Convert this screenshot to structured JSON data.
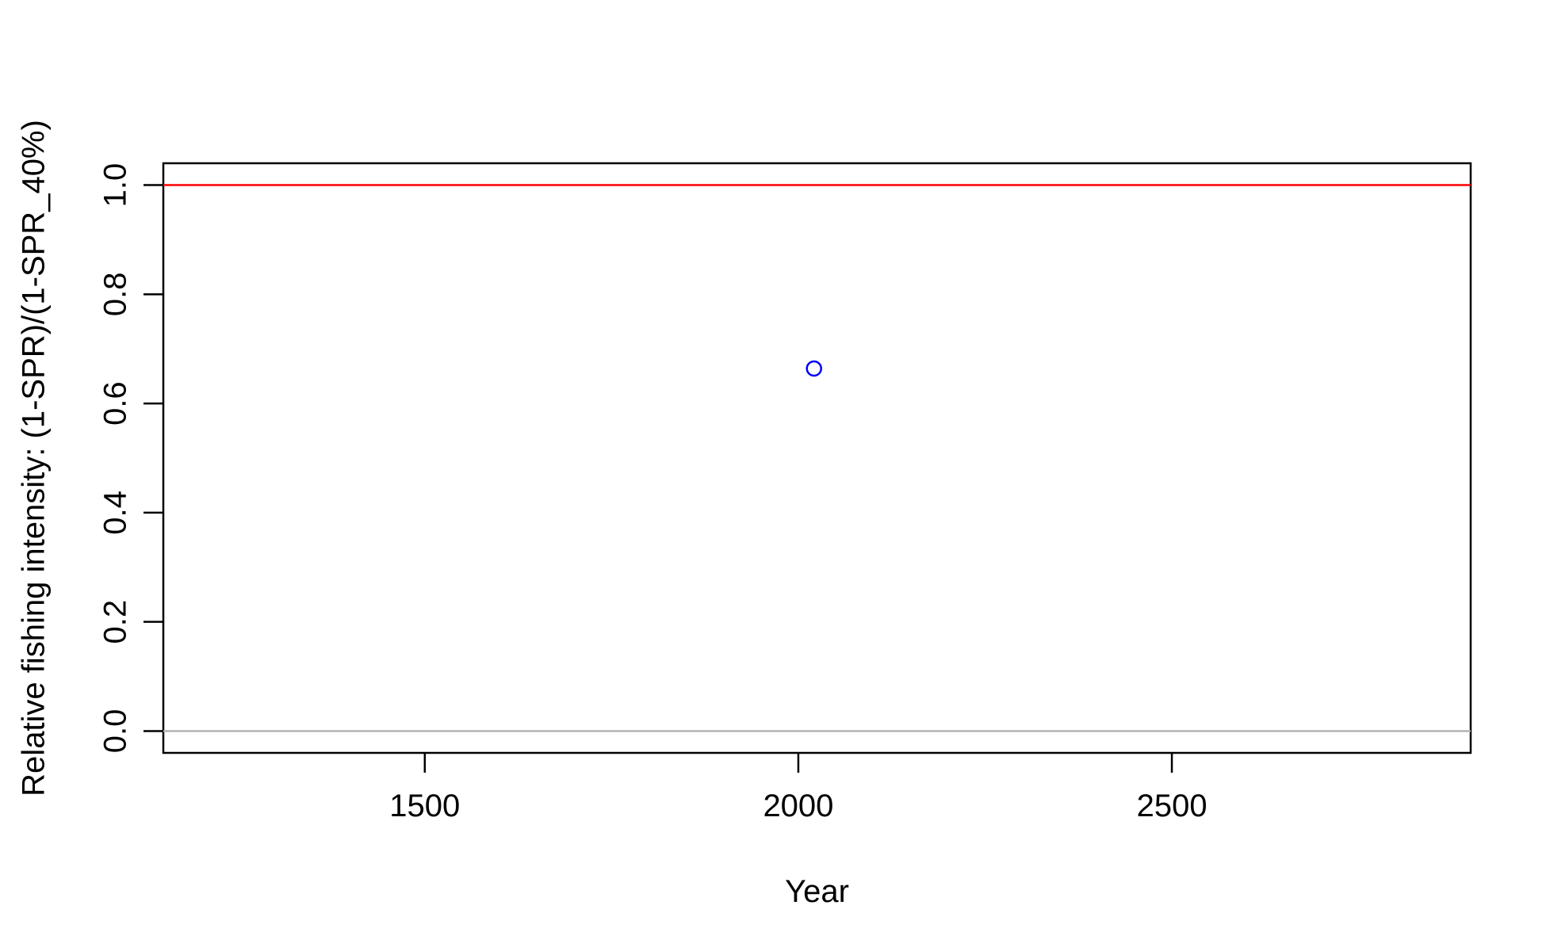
{
  "chart_data": {
    "type": "scatter",
    "title": "",
    "xlabel": "Year",
    "ylabel": "Relative fishing intensity: (1-SPR)/(1-SPR_40%)",
    "xlim": [
      1150,
      2900
    ],
    "ylim": [
      -0.04,
      1.04
    ],
    "x_ticks": [
      1500,
      2000,
      2500
    ],
    "y_ticks": [
      0.0,
      0.2,
      0.4,
      0.6,
      0.8,
      1.0
    ],
    "x_tick_labels": [
      "1500",
      "2000",
      "2500"
    ],
    "y_tick_labels": [
      "0.0",
      "0.2",
      "0.4",
      "0.6",
      "0.8",
      "1.0"
    ],
    "grid": false,
    "points": [
      {
        "x": 2021,
        "y": 0.664
      }
    ],
    "reference_lines": [
      {
        "y": 1.0,
        "color": "#ff0000"
      },
      {
        "y": 0.0,
        "color": "#b3b3b3"
      }
    ],
    "point_color": "#0000ff"
  }
}
